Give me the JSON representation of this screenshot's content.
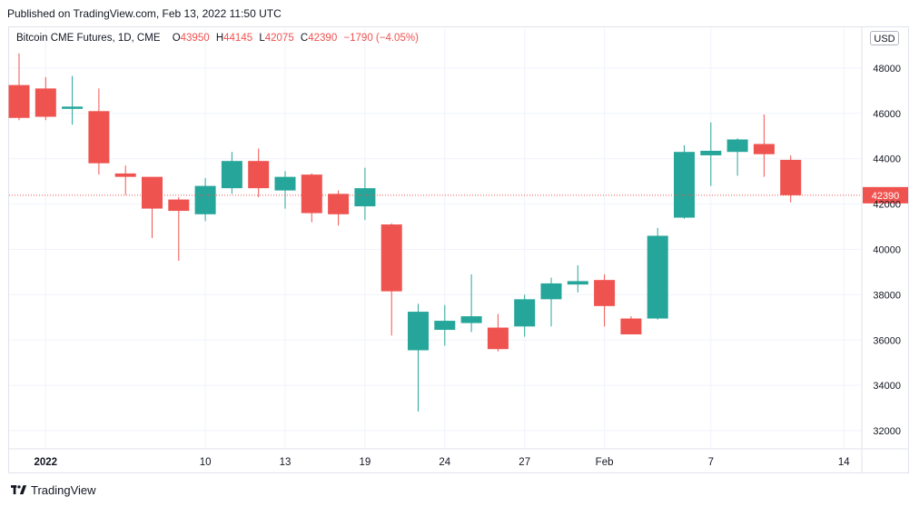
{
  "header": {
    "published_text": "Published on TradingView.com, Feb 13, 2022 11:50 UTC"
  },
  "legend": {
    "symbol": "Bitcoin CME Futures, 1D, CME",
    "o_label": "O",
    "o_value": "43950",
    "h_label": "H",
    "h_value": "44145",
    "l_label": "L",
    "l_value": "42075",
    "c_label": "C",
    "c_value": "42390",
    "change": "−1790 (−4.05%)"
  },
  "currency_label": "USD",
  "footer": {
    "brand": "TradingView"
  },
  "colors": {
    "up": "#26a69a",
    "down": "#ef5350",
    "grid": "#f0f3fa",
    "axis_text": "#131722"
  },
  "chart_data": {
    "type": "candlestick",
    "last_price": 42390,
    "last_price_label": "42390",
    "ylim": [
      31200,
      49800
    ],
    "y_ticks": [
      32000,
      34000,
      36000,
      38000,
      40000,
      42000,
      44000,
      46000,
      48000
    ],
    "y_tick_labels": [
      "32000",
      "34000",
      "36000",
      "38000",
      "40000",
      "42000",
      "44000",
      "46000",
      "48000"
    ],
    "x_ticks": [
      {
        "label": "2022",
        "index": 1,
        "bold": true
      },
      {
        "label": "10",
        "index": 7,
        "bold": false
      },
      {
        "label": "13",
        "index": 10,
        "bold": false
      },
      {
        "label": "19",
        "index": 13,
        "bold": false
      },
      {
        "label": "24",
        "index": 16,
        "bold": false
      },
      {
        "label": "27",
        "index": 19,
        "bold": false
      },
      {
        "label": "Feb",
        "index": 22,
        "bold": false
      },
      {
        "label": "7",
        "index": 26,
        "bold": false
      },
      {
        "label": "14",
        "index": 31,
        "bold": false
      }
    ],
    "candles": [
      {
        "o": 47250,
        "h": 48650,
        "l": 45700,
        "c": 45800
      },
      {
        "o": 47100,
        "h": 47600,
        "l": 45700,
        "c": 45850
      },
      {
        "o": 46200,
        "h": 47650,
        "l": 45500,
        "c": 46300
      },
      {
        "o": 46100,
        "h": 47100,
        "l": 43300,
        "c": 43800
      },
      {
        "o": 43350,
        "h": 43700,
        "l": 42400,
        "c": 43200
      },
      {
        "o": 43200,
        "h": 43200,
        "l": 40500,
        "c": 41800
      },
      {
        "o": 42200,
        "h": 42300,
        "l": 39500,
        "c": 41700
      },
      {
        "o": 41550,
        "h": 43150,
        "l": 41250,
        "c": 42800
      },
      {
        "o": 42700,
        "h": 44300,
        "l": 42450,
        "c": 43900
      },
      {
        "o": 43900,
        "h": 44450,
        "l": 42300,
        "c": 42700
      },
      {
        "o": 42600,
        "h": 43450,
        "l": 41800,
        "c": 43200
      },
      {
        "o": 43300,
        "h": 43350,
        "l": 41200,
        "c": 41600
      },
      {
        "o": 42450,
        "h": 42600,
        "l": 41050,
        "c": 41550
      },
      {
        "o": 41900,
        "h": 43600,
        "l": 41300,
        "c": 42700
      },
      {
        "o": 41100,
        "h": 41150,
        "l": 36200,
        "c": 38150
      },
      {
        "o": 35550,
        "h": 37600,
        "l": 32850,
        "c": 37250
      },
      {
        "o": 36450,
        "h": 37550,
        "l": 35750,
        "c": 36850
      },
      {
        "o": 36750,
        "h": 38900,
        "l": 36350,
        "c": 37050
      },
      {
        "o": 36550,
        "h": 37150,
        "l": 35500,
        "c": 35600
      },
      {
        "o": 36600,
        "h": 38000,
        "l": 36150,
        "c": 37800
      },
      {
        "o": 37800,
        "h": 38750,
        "l": 36600,
        "c": 38500
      },
      {
        "o": 38450,
        "h": 39300,
        "l": 38100,
        "c": 38600
      },
      {
        "o": 38650,
        "h": 38900,
        "l": 36600,
        "c": 37500
      },
      {
        "o": 36950,
        "h": 37050,
        "l": 36250,
        "c": 36250
      },
      {
        "o": 36950,
        "h": 40950,
        "l": 36900,
        "c": 40600
      },
      {
        "o": 41400,
        "h": 44600,
        "l": 41350,
        "c": 44300
      },
      {
        "o": 44150,
        "h": 45600,
        "l": 42800,
        "c": 44350
      },
      {
        "o": 44300,
        "h": 44900,
        "l": 43250,
        "c": 44850
      },
      {
        "o": 44650,
        "h": 45950,
        "l": 43200,
        "c": 44200
      },
      {
        "o": 43950,
        "h": 44145,
        "l": 42075,
        "c": 42390
      }
    ]
  }
}
